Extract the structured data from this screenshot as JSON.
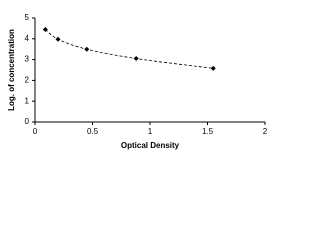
{
  "chart_data": {
    "type": "scatter",
    "x_label": "Optical Density",
    "y_label": "Log. of concentration",
    "x": [
      0.09,
      0.2,
      0.45,
      0.88,
      1.55
    ],
    "series": [
      {
        "color": "#000000",
        "values": [
          4.45,
          3.98,
          3.5,
          3.05,
          2.58
        ]
      }
    ],
    "xlim": [
      0,
      2
    ],
    "xticks": [
      0,
      0.5,
      1,
      1.5,
      2
    ],
    "ylim": [
      0,
      5
    ],
    "yticks": [
      0,
      1,
      2,
      3,
      4,
      5
    ],
    "trend_line": "dashed"
  }
}
